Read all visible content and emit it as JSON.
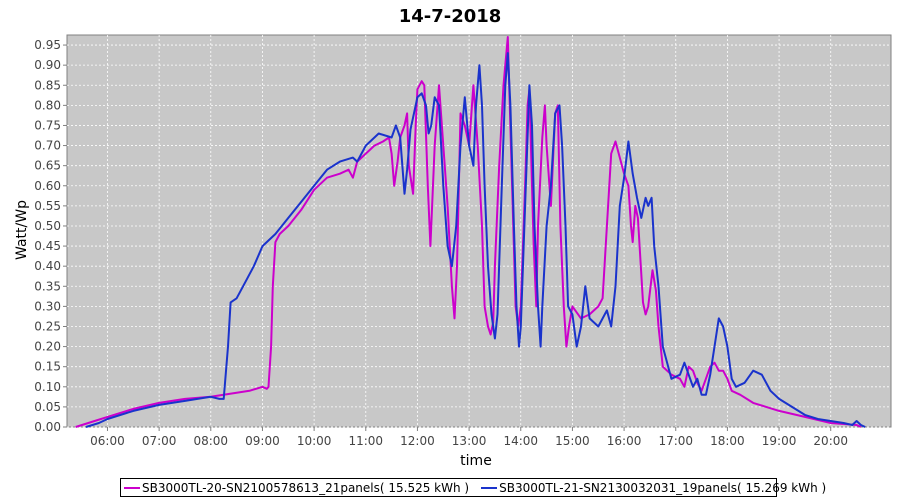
{
  "chart_data": {
    "type": "line",
    "title": "14-7-2018",
    "xlabel": "time",
    "ylabel": "Watt/Wp",
    "x_ticks": [
      "06:00",
      "07:00",
      "08:00",
      "09:00",
      "10:00",
      "11:00",
      "12:00",
      "13:00",
      "14:00",
      "15:00",
      "16:00",
      "17:00",
      "18:00",
      "19:00",
      "20:00"
    ],
    "y_ticks": [
      "0.00",
      "0.05",
      "0.10",
      "0.15",
      "0.20",
      "0.25",
      "0.30",
      "0.35",
      "0.40",
      "0.45",
      "0.50",
      "0.55",
      "0.60",
      "0.65",
      "0.70",
      "0.75",
      "0.80",
      "0.85",
      "0.90",
      "0.95"
    ],
    "xlim": [
      "05:13",
      "21:10"
    ],
    "ylim": [
      0,
      0.975
    ],
    "grid": true,
    "legend_position": "bottom",
    "series": [
      {
        "name": "SB3000TL-20-SN2100578613_21panels( 15.525 kWh )",
        "color": "#cc00cc",
        "points": [
          [
            "05:23",
            0.0
          ],
          [
            "05:45",
            0.015
          ],
          [
            "06:00",
            0.025
          ],
          [
            "06:30",
            0.045
          ],
          [
            "07:00",
            0.06
          ],
          [
            "07:30",
            0.07
          ],
          [
            "08:00",
            0.075
          ],
          [
            "08:30",
            0.085
          ],
          [
            "08:45",
            0.09
          ],
          [
            "09:00",
            0.1
          ],
          [
            "09:05",
            0.095
          ],
          [
            "09:07",
            0.1
          ],
          [
            "09:10",
            0.2
          ],
          [
            "09:12",
            0.35
          ],
          [
            "09:15",
            0.46
          ],
          [
            "09:20",
            0.48
          ],
          [
            "09:30",
            0.5
          ],
          [
            "09:45",
            0.54
          ],
          [
            "10:00",
            0.59
          ],
          [
            "10:15",
            0.62
          ],
          [
            "10:30",
            0.63
          ],
          [
            "10:40",
            0.64
          ],
          [
            "10:45",
            0.62
          ],
          [
            "10:50",
            0.66
          ],
          [
            "11:00",
            0.68
          ],
          [
            "11:10",
            0.7
          ],
          [
            "11:20",
            0.71
          ],
          [
            "11:27",
            0.72
          ],
          [
            "11:30",
            0.68
          ],
          [
            "11:33",
            0.6
          ],
          [
            "11:37",
            0.66
          ],
          [
            "11:40",
            0.72
          ],
          [
            "11:45",
            0.75
          ],
          [
            "11:48",
            0.78
          ],
          [
            "11:50",
            0.65
          ],
          [
            "11:55",
            0.58
          ],
          [
            "11:58",
            0.75
          ],
          [
            "12:00",
            0.84
          ],
          [
            "12:05",
            0.86
          ],
          [
            "12:08",
            0.85
          ],
          [
            "12:12",
            0.6
          ],
          [
            "12:15",
            0.45
          ],
          [
            "12:20",
            0.7
          ],
          [
            "12:25",
            0.85
          ],
          [
            "12:30",
            0.7
          ],
          [
            "12:35",
            0.55
          ],
          [
            "12:40",
            0.35
          ],
          [
            "12:43",
            0.27
          ],
          [
            "12:46",
            0.4
          ],
          [
            "12:50",
            0.78
          ],
          [
            "12:55",
            0.75
          ],
          [
            "13:00",
            0.7
          ],
          [
            "13:05",
            0.85
          ],
          [
            "13:10",
            0.7
          ],
          [
            "13:15",
            0.5
          ],
          [
            "13:18",
            0.3
          ],
          [
            "13:22",
            0.25
          ],
          [
            "13:25",
            0.23
          ],
          [
            "13:28",
            0.26
          ],
          [
            "13:30",
            0.4
          ],
          [
            "13:35",
            0.65
          ],
          [
            "13:40",
            0.85
          ],
          [
            "13:45",
            0.97
          ],
          [
            "13:50",
            0.6
          ],
          [
            "13:54",
            0.3
          ],
          [
            "13:57",
            0.25
          ],
          [
            "14:00",
            0.3
          ],
          [
            "14:05",
            0.6
          ],
          [
            "14:08",
            0.8
          ],
          [
            "14:10",
            0.84
          ],
          [
            "14:13",
            0.6
          ],
          [
            "14:15",
            0.45
          ],
          [
            "14:18",
            0.3
          ],
          [
            "14:20",
            0.5
          ],
          [
            "14:25",
            0.72
          ],
          [
            "14:28",
            0.8
          ],
          [
            "14:30",
            0.7
          ],
          [
            "14:35",
            0.55
          ],
          [
            "14:40",
            0.78
          ],
          [
            "14:43",
            0.8
          ],
          [
            "14:46",
            0.5
          ],
          [
            "14:48",
            0.4
          ],
          [
            "14:50",
            0.3
          ],
          [
            "14:53",
            0.2
          ],
          [
            "14:56",
            0.25
          ],
          [
            "15:00",
            0.3
          ],
          [
            "15:10",
            0.27
          ],
          [
            "15:20",
            0.28
          ],
          [
            "15:30",
            0.3
          ],
          [
            "15:35",
            0.32
          ],
          [
            "15:40",
            0.5
          ],
          [
            "15:45",
            0.68
          ],
          [
            "15:50",
            0.71
          ],
          [
            "15:55",
            0.67
          ],
          [
            "16:00",
            0.63
          ],
          [
            "16:05",
            0.6
          ],
          [
            "16:08",
            0.5
          ],
          [
            "16:10",
            0.46
          ],
          [
            "16:13",
            0.55
          ],
          [
            "16:16",
            0.52
          ],
          [
            "16:18",
            0.45
          ],
          [
            "16:20",
            0.38
          ],
          [
            "16:22",
            0.31
          ],
          [
            "16:25",
            0.28
          ],
          [
            "16:28",
            0.3
          ],
          [
            "16:33",
            0.39
          ],
          [
            "16:37",
            0.34
          ],
          [
            "16:40",
            0.25
          ],
          [
            "16:45",
            0.15
          ],
          [
            "16:55",
            0.13
          ],
          [
            "17:05",
            0.12
          ],
          [
            "17:10",
            0.1
          ],
          [
            "17:15",
            0.15
          ],
          [
            "17:20",
            0.14
          ],
          [
            "17:25",
            0.11
          ],
          [
            "17:30",
            0.09
          ],
          [
            "17:35",
            0.12
          ],
          [
            "17:40",
            0.15
          ],
          [
            "17:45",
            0.16
          ],
          [
            "17:50",
            0.14
          ],
          [
            "17:55",
            0.14
          ],
          [
            "18:00",
            0.12
          ],
          [
            "18:05",
            0.09
          ],
          [
            "18:15",
            0.08
          ],
          [
            "18:30",
            0.06
          ],
          [
            "18:45",
            0.05
          ],
          [
            "19:00",
            0.04
          ],
          [
            "19:30",
            0.025
          ],
          [
            "20:00",
            0.01
          ],
          [
            "20:30",
            0.005
          ],
          [
            "20:35",
            0.0
          ]
        ]
      },
      {
        "name": "SB3000TL-21-SN2130032031_19panels( 15.269 kWh )",
        "color": "#1a33cc",
        "points": [
          [
            "05:35",
            0.0
          ],
          [
            "05:50",
            0.01
          ],
          [
            "06:00",
            0.02
          ],
          [
            "06:30",
            0.04
          ],
          [
            "07:00",
            0.055
          ],
          [
            "07:30",
            0.065
          ],
          [
            "08:00",
            0.075
          ],
          [
            "08:10",
            0.07
          ],
          [
            "08:15",
            0.07
          ],
          [
            "08:20",
            0.2
          ],
          [
            "08:23",
            0.31
          ],
          [
            "08:30",
            0.32
          ],
          [
            "08:40",
            0.36
          ],
          [
            "08:50",
            0.4
          ],
          [
            "09:00",
            0.45
          ],
          [
            "09:15",
            0.48
          ],
          [
            "09:30",
            0.52
          ],
          [
            "09:45",
            0.56
          ],
          [
            "10:00",
            0.6
          ],
          [
            "10:15",
            0.64
          ],
          [
            "10:30",
            0.66
          ],
          [
            "10:45",
            0.67
          ],
          [
            "10:50",
            0.66
          ],
          [
            "11:00",
            0.7
          ],
          [
            "11:15",
            0.73
          ],
          [
            "11:30",
            0.72
          ],
          [
            "11:35",
            0.75
          ],
          [
            "11:40",
            0.72
          ],
          [
            "11:45",
            0.58
          ],
          [
            "11:48",
            0.64
          ],
          [
            "11:52",
            0.74
          ],
          [
            "12:00",
            0.82
          ],
          [
            "12:05",
            0.83
          ],
          [
            "12:10",
            0.8
          ],
          [
            "12:13",
            0.73
          ],
          [
            "12:16",
            0.75
          ],
          [
            "12:20",
            0.82
          ],
          [
            "12:25",
            0.8
          ],
          [
            "12:30",
            0.6
          ],
          [
            "12:35",
            0.45
          ],
          [
            "12:40",
            0.4
          ],
          [
            "12:45",
            0.5
          ],
          [
            "12:50",
            0.7
          ],
          [
            "12:55",
            0.82
          ],
          [
            "13:00",
            0.7
          ],
          [
            "13:05",
            0.65
          ],
          [
            "13:08",
            0.8
          ],
          [
            "13:12",
            0.9
          ],
          [
            "13:15",
            0.8
          ],
          [
            "13:18",
            0.6
          ],
          [
            "13:22",
            0.4
          ],
          [
            "13:26",
            0.28
          ],
          [
            "13:30",
            0.22
          ],
          [
            "13:33",
            0.28
          ],
          [
            "13:38",
            0.6
          ],
          [
            "13:42",
            0.85
          ],
          [
            "13:45",
            0.93
          ],
          [
            "13:48",
            0.8
          ],
          [
            "13:52",
            0.5
          ],
          [
            "13:55",
            0.3
          ],
          [
            "13:58",
            0.2
          ],
          [
            "14:00",
            0.25
          ],
          [
            "14:05",
            0.55
          ],
          [
            "14:10",
            0.85
          ],
          [
            "14:13",
            0.75
          ],
          [
            "14:16",
            0.5
          ],
          [
            "14:20",
            0.3
          ],
          [
            "14:23",
            0.2
          ],
          [
            "14:25",
            0.3
          ],
          [
            "14:30",
            0.5
          ],
          [
            "14:35",
            0.6
          ],
          [
            "14:40",
            0.78
          ],
          [
            "14:45",
            0.8
          ],
          [
            "14:48",
            0.7
          ],
          [
            "14:52",
            0.5
          ],
          [
            "14:55",
            0.3
          ],
          [
            "15:00",
            0.28
          ],
          [
            "15:05",
            0.2
          ],
          [
            "15:10",
            0.25
          ],
          [
            "15:15",
            0.35
          ],
          [
            "15:20",
            0.27
          ],
          [
            "15:30",
            0.25
          ],
          [
            "15:40",
            0.29
          ],
          [
            "15:45",
            0.25
          ],
          [
            "15:50",
            0.35
          ],
          [
            "15:55",
            0.55
          ],
          [
            "16:00",
            0.62
          ],
          [
            "16:05",
            0.71
          ],
          [
            "16:10",
            0.63
          ],
          [
            "16:15",
            0.57
          ],
          [
            "16:20",
            0.52
          ],
          [
            "16:25",
            0.57
          ],
          [
            "16:28",
            0.55
          ],
          [
            "16:32",
            0.57
          ],
          [
            "16:35",
            0.45
          ],
          [
            "16:40",
            0.35
          ],
          [
            "16:45",
            0.2
          ],
          [
            "16:55",
            0.12
          ],
          [
            "17:05",
            0.13
          ],
          [
            "17:10",
            0.16
          ],
          [
            "17:20",
            0.1
          ],
          [
            "17:25",
            0.12
          ],
          [
            "17:30",
            0.08
          ],
          [
            "17:35",
            0.08
          ],
          [
            "17:40",
            0.13
          ],
          [
            "17:45",
            0.2
          ],
          [
            "17:50",
            0.27
          ],
          [
            "17:55",
            0.25
          ],
          [
            "18:00",
            0.2
          ],
          [
            "18:05",
            0.12
          ],
          [
            "18:10",
            0.1
          ],
          [
            "18:20",
            0.11
          ],
          [
            "18:30",
            0.14
          ],
          [
            "18:40",
            0.13
          ],
          [
            "18:50",
            0.09
          ],
          [
            "19:00",
            0.07
          ],
          [
            "19:15",
            0.05
          ],
          [
            "19:30",
            0.03
          ],
          [
            "19:45",
            0.02
          ],
          [
            "20:00",
            0.015
          ],
          [
            "20:15",
            0.01
          ],
          [
            "20:25",
            0.005
          ],
          [
            "20:30",
            0.015
          ],
          [
            "20:35",
            0.005
          ],
          [
            "20:40",
            0.0
          ]
        ]
      }
    ]
  }
}
